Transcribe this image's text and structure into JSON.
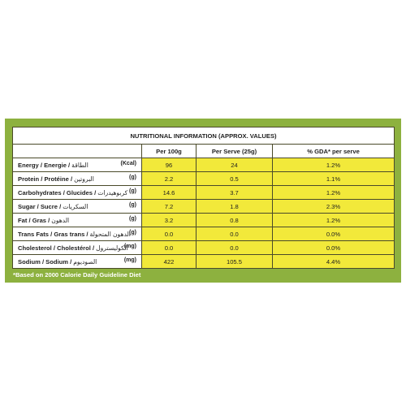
{
  "title": "NUTRITIONAL INFORMATION (APPROX. VALUES)",
  "columns": [
    "Per 100g",
    "Per Serve (25g)",
    "% GDA* per serve"
  ],
  "rows": [
    {
      "name": "Energy / Energie /",
      "arabic": "الطاقة",
      "unit": "(Kcal)",
      "per100": "96",
      "perServe": "24",
      "gda": "1.2%"
    },
    {
      "name": "Protein / Protéine /",
      "arabic": "البروتين",
      "unit": "(g)",
      "per100": "2.2",
      "perServe": "0.5",
      "gda": "1.1%"
    },
    {
      "name": "Carbohydrates / Glucides /",
      "arabic": "كربوهيدرات",
      "unit": "(g)",
      "per100": "14.6",
      "perServe": "3.7",
      "gda": "1.2%"
    },
    {
      "name": "Sugar / Sucre /",
      "arabic": "السكريات",
      "unit": "(g)",
      "per100": "7.2",
      "perServe": "1.8",
      "gda": "2.3%"
    },
    {
      "name": "Fat / Gras /",
      "arabic": "الدهون",
      "unit": "(g)",
      "per100": "3.2",
      "perServe": "0.8",
      "gda": "1.2%"
    },
    {
      "name": "Trans Fats / Gras trans /",
      "arabic": "الدهون المتحولة",
      "unit": "(g)",
      "per100": "0.0",
      "perServe": "0.0",
      "gda": "0.0%"
    },
    {
      "name": "Cholesterol / Cholestérol /",
      "arabic": "الكوليسترول",
      "unit": "(mg)",
      "per100": "0.0",
      "perServe": "0.0",
      "gda": "0.0%"
    },
    {
      "name": "Sodium / Sodium /",
      "arabic": "الصوديوم",
      "unit": "(mg)",
      "per100": "422",
      "perServe": "105.5",
      "gda": "4.4%"
    }
  ],
  "footnote": "*Based on 2000 Calorie Daily Guideline Diet",
  "colors": {
    "panel": "#8db13f",
    "highlight": "#f2e93a"
  }
}
